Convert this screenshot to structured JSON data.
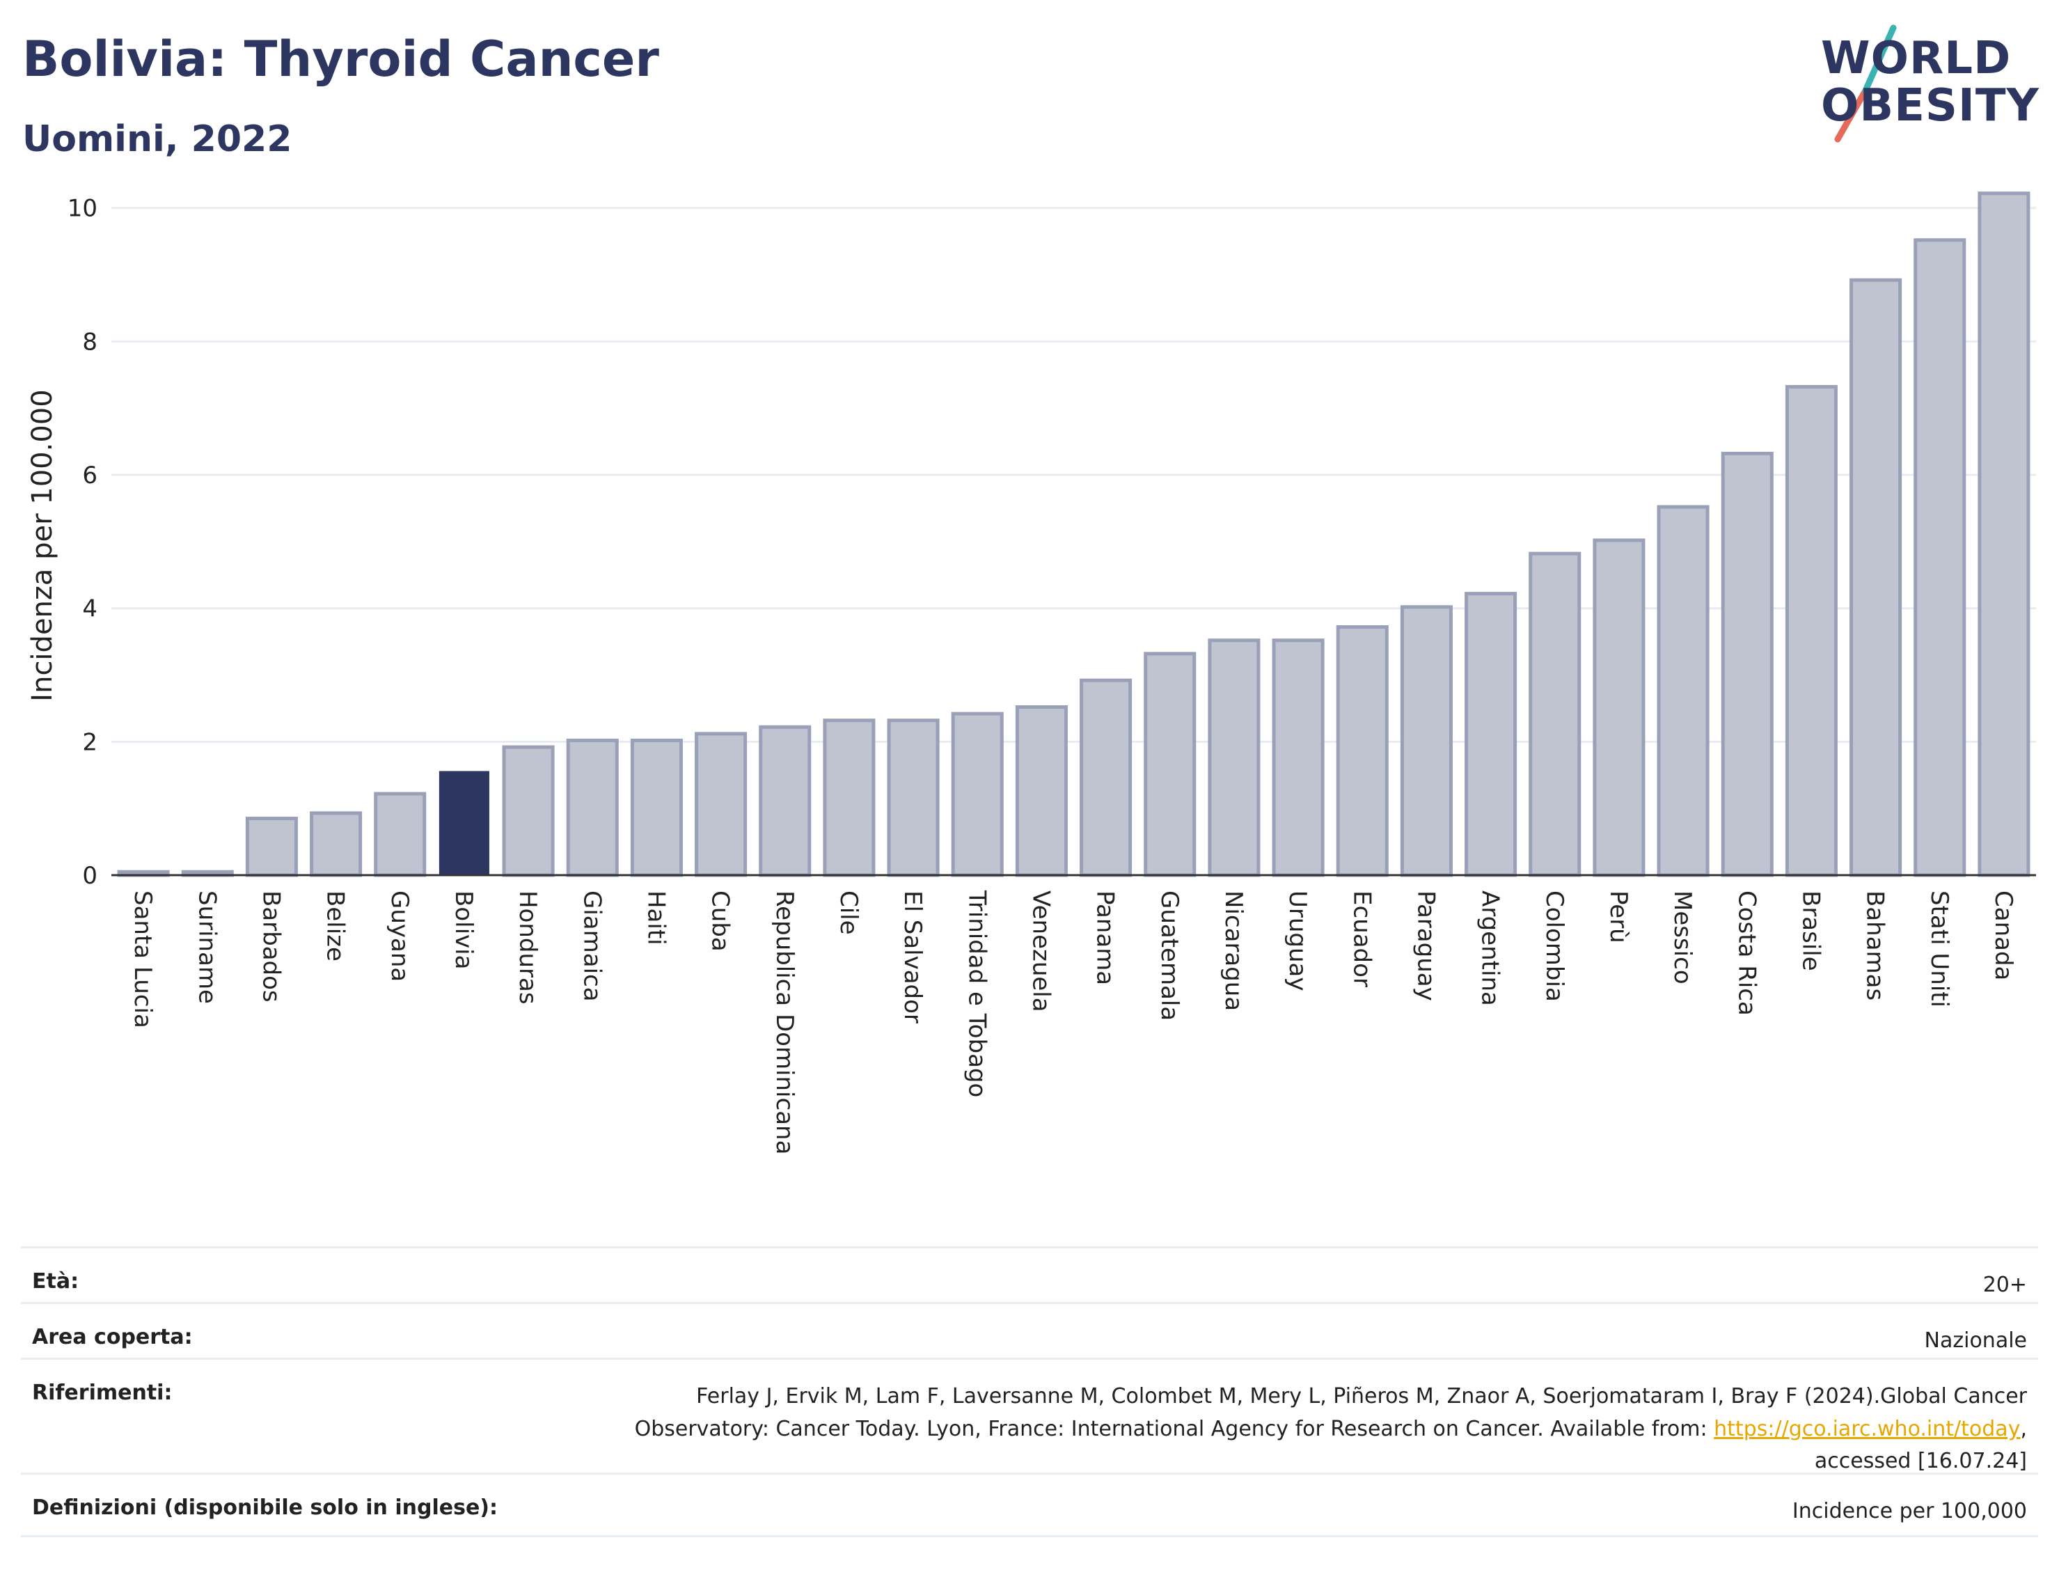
{
  "header": {
    "title": "Bolivia: Thyroid Cancer",
    "subtitle": "Uomini, 2022"
  },
  "logo": {
    "line1": "WORLD",
    "line2": "OBESITY"
  },
  "colors": {
    "highlight": "#2c3660",
    "bar_fill": "#c0c4d1",
    "bar_stroke": "#99a0b8",
    "grid": "#e8ecf2",
    "accent_teal": "#3bb3b3",
    "accent_red": "#e56a5a",
    "link": "#e6a700"
  },
  "chart_data": {
    "type": "bar",
    "ylabel": "Incidenza per 100.000",
    "xlabel": "",
    "ylim": [
      0,
      10.3
    ],
    "yticks": [
      0,
      2,
      4,
      6,
      8,
      10
    ],
    "grid": true,
    "highlight": "Bolivia",
    "categories": [
      "Santa Lucia",
      "Suriname",
      "Barbados",
      "Belize",
      "Guyana",
      "Bolivia",
      "Honduras",
      "Giamaica",
      "Haiti",
      "Cuba",
      "Republica Dominicana",
      "Cile",
      "El Salvador",
      "Trinidad e Tobago",
      "Venezuela",
      "Panama",
      "Guatemala",
      "Nicaragua",
      "Uruguay",
      "Ecuador",
      "Paraguay",
      "Argentina",
      "Colombia",
      "Perù",
      "Messico",
      "Costa Rica",
      "Brasile",
      "Bahamas",
      "Stati Uniti",
      "Canada"
    ],
    "values": [
      0.05,
      0.05,
      0.85,
      0.93,
      1.22,
      1.55,
      1.92,
      2.02,
      2.02,
      2.12,
      2.22,
      2.32,
      2.32,
      2.42,
      2.52,
      2.92,
      3.32,
      3.52,
      3.52,
      3.72,
      4.02,
      4.22,
      4.82,
      5.02,
      5.52,
      6.32,
      7.32,
      8.92,
      9.52,
      10.22
    ]
  },
  "meta": {
    "age_label": "Età:",
    "age_value": "20+",
    "area_label": "Area coperta:",
    "area_value": "Nazionale",
    "refs_label": "Riferimenti:",
    "refs_line1": "Ferlay J, Ervik M, Lam F, Laversanne M, Colombet M, Mery L, Piñeros M, Znaor A, Soerjomataram I, Bray F (2024).Global Cancer",
    "refs_line2_pre": "Observatory: Cancer Today. Lyon, France: International Agency for Research on Cancer. Available from: ",
    "refs_link": "https://gco.iarc.who.int/today",
    "refs_line2_post": ",",
    "refs_line3": "accessed [16.07.24]",
    "defs_label": "Definizioni (disponibile solo in inglese):",
    "defs_value": "Incidence per 100,000"
  }
}
